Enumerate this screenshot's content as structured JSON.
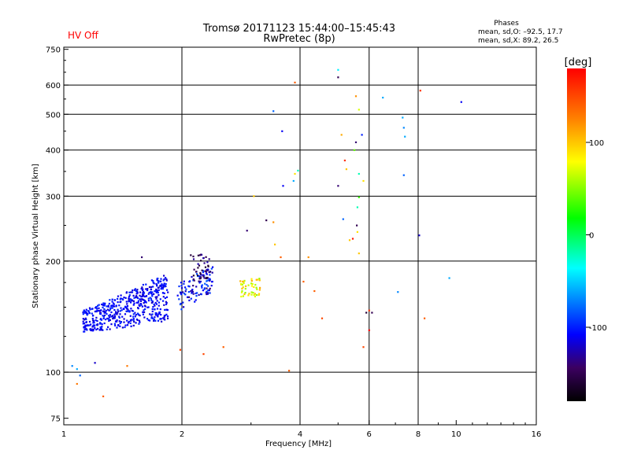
{
  "status": {
    "text": "HV Off",
    "color": "#ff0000"
  },
  "header": {
    "title": "Tromsø 20171123 15:44:00–15:45:43",
    "subtitle": "RwPretec (8p)"
  },
  "stats": {
    "title": "Phases",
    "line1": "mean, sd,O: –92.5, 17.7",
    "line2": "mean, sd,X:  89.2, 26.5"
  },
  "colorbar": {
    "unit": "[deg]",
    "range": [
      -180,
      180
    ],
    "ticks": [
      {
        "v": 100,
        "label": "100"
      },
      {
        "v": 0,
        "label": "0"
      },
      {
        "v": -100,
        "label": "-100"
      }
    ]
  },
  "chart_data": {
    "type": "scatter",
    "xscale": "log2",
    "yscale": "log",
    "xlim": [
      1,
      16
    ],
    "ylim": [
      72,
      760
    ],
    "xlabel": "Frequency [MHz]",
    "ylabel": "Stationary phase Virtual Height [km]",
    "xticks": [
      {
        "v": 1,
        "label": "1"
      },
      {
        "v": 2,
        "label": "2"
      },
      {
        "v": 4,
        "label": "4"
      },
      {
        "v": 6,
        "label": "6"
      },
      {
        "v": 8,
        "label": "8"
      },
      {
        "v": 10,
        "label": "10"
      },
      {
        "v": 16,
        "label": "16"
      }
    ],
    "yticks": [
      {
        "v": 75,
        "label": "75"
      },
      {
        "v": 100,
        "label": "100"
      },
      {
        "v": 200,
        "label": "200"
      },
      {
        "v": 300,
        "label": "300"
      },
      {
        "v": 400,
        "label": "400"
      },
      {
        "v": 500,
        "label": "500"
      },
      {
        "v": 600,
        "label": "600"
      },
      {
        "v": 750,
        "label": "750"
      }
    ],
    "grid_x": [
      2,
      4,
      6,
      8
    ],
    "grid_y": [
      100,
      200,
      300,
      400,
      500,
      600
    ],
    "points": [
      [
        1.05,
        104,
        -70
      ],
      [
        1.08,
        102,
        -60
      ],
      [
        1.1,
        98,
        -80
      ],
      [
        1.08,
        93,
        130
      ],
      [
        1.2,
        106,
        -120
      ],
      [
        1.26,
        86,
        140
      ],
      [
        1.45,
        104,
        130
      ],
      [
        1.58,
        205,
        -140
      ],
      [
        1.98,
        115,
        150
      ],
      [
        2.27,
        112,
        150
      ],
      [
        2.55,
        117,
        140
      ],
      [
        3.75,
        101,
        140
      ],
      [
        3.57,
        205,
        140
      ],
      [
        3.28,
        258,
        -150
      ],
      [
        2.93,
        242,
        -140
      ],
      [
        3.05,
        300,
        100
      ],
      [
        3.42,
        255,
        120
      ],
      [
        3.45,
        222,
        100
      ],
      [
        3.62,
        320,
        -110
      ],
      [
        3.85,
        330,
        -60
      ],
      [
        3.88,
        345,
        90
      ],
      [
        4.2,
        205,
        120
      ],
      [
        3.95,
        352,
        -20
      ],
      [
        4.08,
        176,
        140
      ],
      [
        4.35,
        166,
        140
      ],
      [
        4.55,
        140,
        150
      ],
      [
        3.6,
        450,
        -110
      ],
      [
        3.42,
        510,
        -80
      ],
      [
        3.88,
        610,
        140
      ],
      [
        5.0,
        630,
        -150
      ],
      [
        5.0,
        660,
        -40
      ],
      [
        5.1,
        440,
        110
      ],
      [
        5.2,
        375,
        160
      ],
      [
        5.25,
        355,
        100
      ],
      [
        5.15,
        260,
        -80
      ],
      [
        5.0,
        320,
        -140
      ],
      [
        5.45,
        230,
        170
      ],
      [
        5.35,
        228,
        100
      ],
      [
        5.5,
        400,
        40
      ],
      [
        5.55,
        420,
        -140
      ],
      [
        5.65,
        345,
        -20
      ],
      [
        5.65,
        298,
        30
      ],
      [
        5.6,
        280,
        -20
      ],
      [
        5.58,
        250,
        -150
      ],
      [
        5.6,
        240,
        90
      ],
      [
        5.65,
        210,
        100
      ],
      [
        5.55,
        560,
        120
      ],
      [
        5.65,
        515,
        70
      ],
      [
        5.75,
        440,
        -100
      ],
      [
        5.8,
        330,
        90
      ],
      [
        5.9,
        145,
        -160
      ],
      [
        6.0,
        147,
        160
      ],
      [
        6.1,
        145,
        -150
      ],
      [
        6.0,
        130,
        180
      ],
      [
        5.8,
        117,
        150
      ],
      [
        6.5,
        555,
        -60
      ],
      [
        7.3,
        490,
        -60
      ],
      [
        7.35,
        460,
        -70
      ],
      [
        7.4,
        435,
        -60
      ],
      [
        7.35,
        342,
        -80
      ],
      [
        7.1,
        165,
        -70
      ],
      [
        8.05,
        235,
        -120
      ],
      [
        8.1,
        580,
        160
      ],
      [
        8.3,
        140,
        140
      ],
      [
        9.6,
        180,
        -60
      ],
      [
        10.3,
        540,
        -110
      ]
    ],
    "scatter_seed": 7
  }
}
